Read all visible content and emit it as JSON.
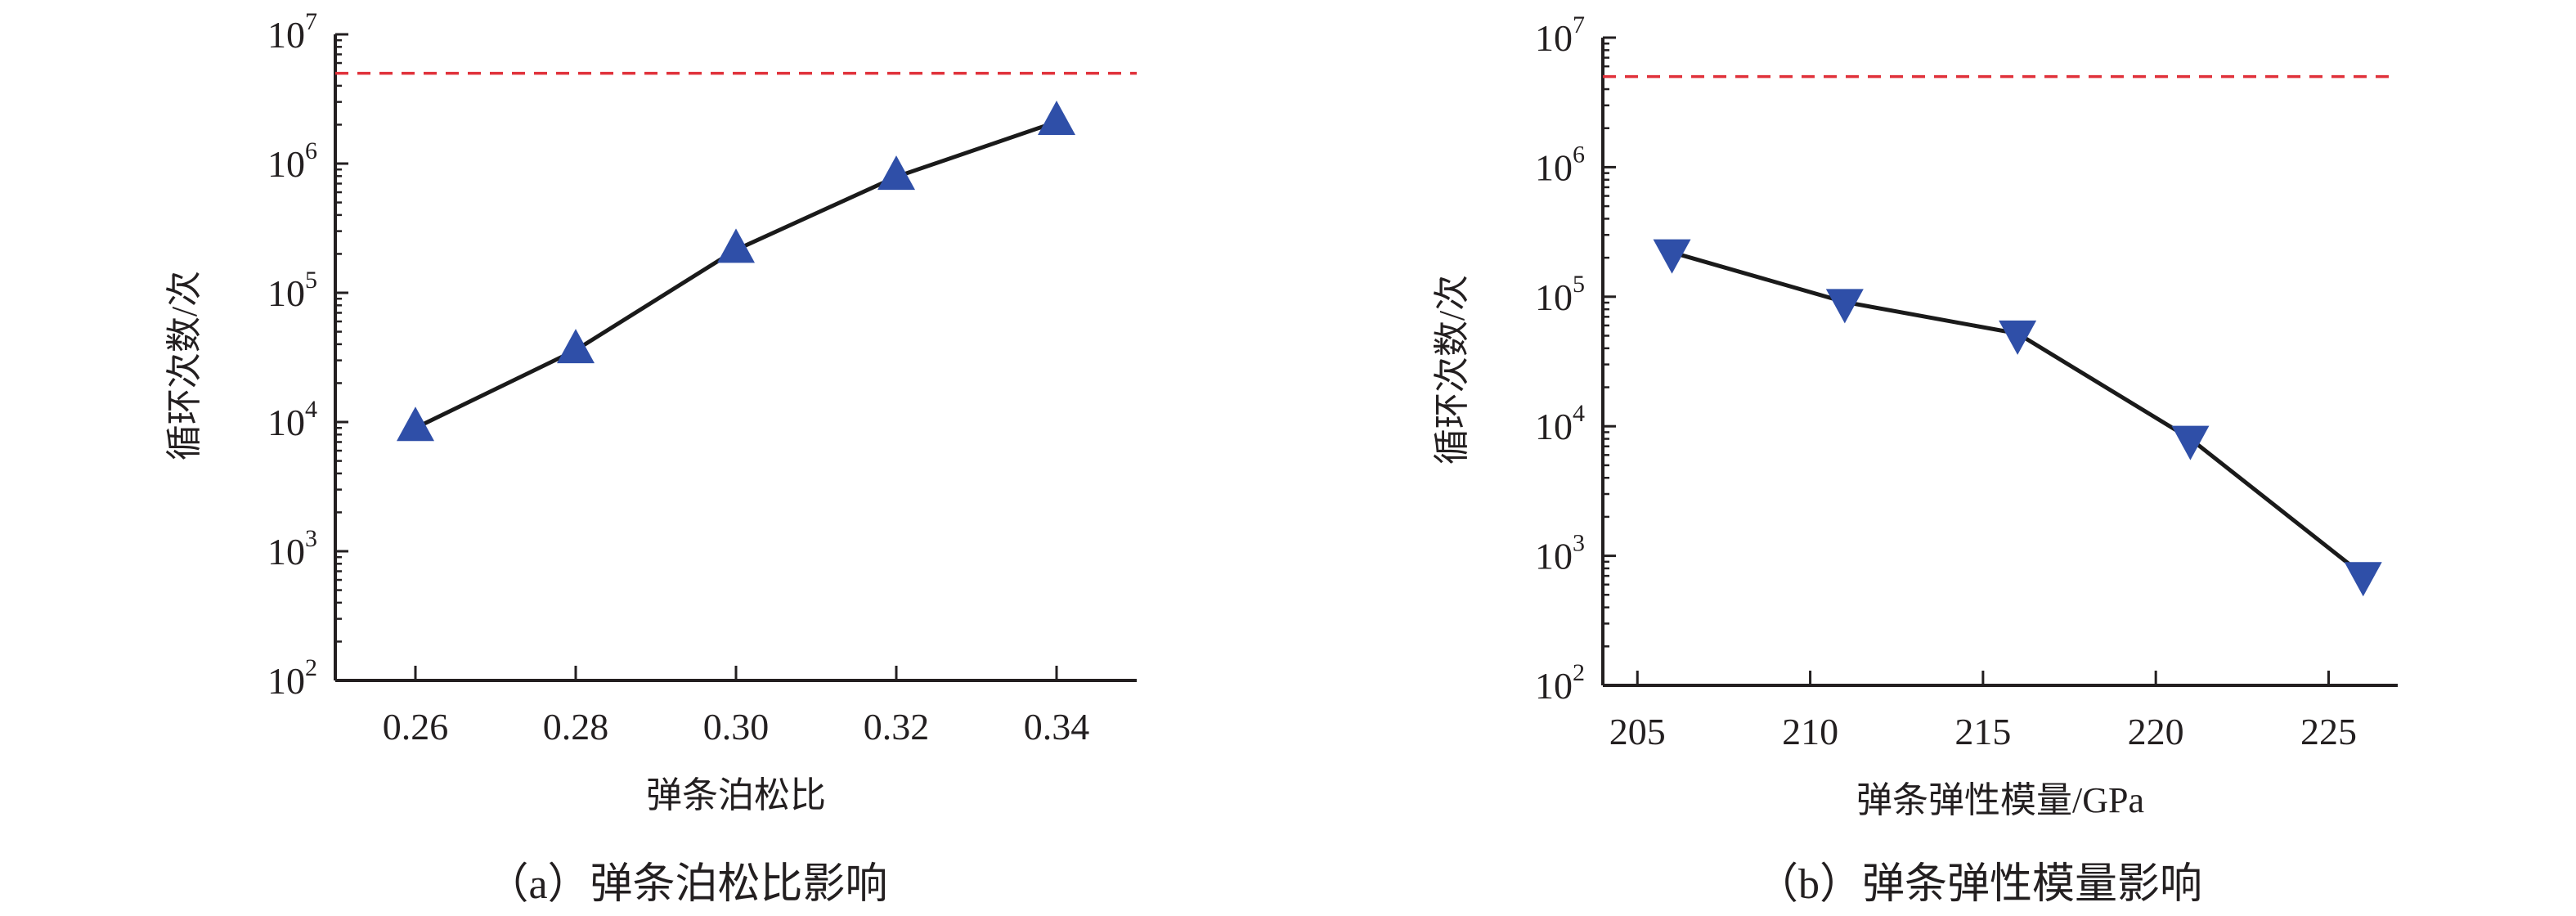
{
  "chart_data": [
    {
      "type": "line",
      "caption": "（a）弹条泊松比影响",
      "xlabel": "弹条泊松比",
      "ylabel": "循环次数/次",
      "yscale": "log",
      "ylim": [
        100,
        10000000
      ],
      "xlim": [
        0.25,
        0.35
      ],
      "xticks": [
        0.26,
        0.28,
        0.3,
        0.32,
        0.34
      ],
      "xtick_labels": [
        "0.26",
        "0.28",
        "0.30",
        "0.32",
        "0.34"
      ],
      "ytick_exponents": [
        "2",
        "3",
        "4",
        "5",
        "6",
        "7"
      ],
      "x": [
        0.26,
        0.28,
        0.3,
        0.32,
        0.34
      ],
      "y": [
        9000,
        36000,
        215000,
        790000,
        2100000
      ],
      "marker": "triangle-up",
      "reference_line": 5000000
    },
    {
      "type": "line",
      "caption": "（b）弹条弹性模量影响",
      "xlabel": "弹条弹性模量/GPa",
      "ylabel": "循环次数/次",
      "yscale": "log",
      "ylim": [
        100,
        10000000
      ],
      "xlim": [
        204,
        227
      ],
      "xticks": [
        205,
        210,
        215,
        220,
        225
      ],
      "xtick_labels": [
        "205",
        "210",
        "215",
        "220",
        "225"
      ],
      "ytick_exponents": [
        "2",
        "3",
        "4",
        "5",
        "6",
        "7"
      ],
      "x": [
        206,
        211,
        216,
        221,
        226
      ],
      "y": [
        220000,
        91000,
        52000,
        8000,
        710
      ],
      "marker": "triangle-down",
      "reference_line": 5000000
    }
  ],
  "colors": {
    "marker": "#2f4fa8",
    "line": "#1a1a1a",
    "reference": "#e0313a",
    "axis": "#231f20"
  }
}
